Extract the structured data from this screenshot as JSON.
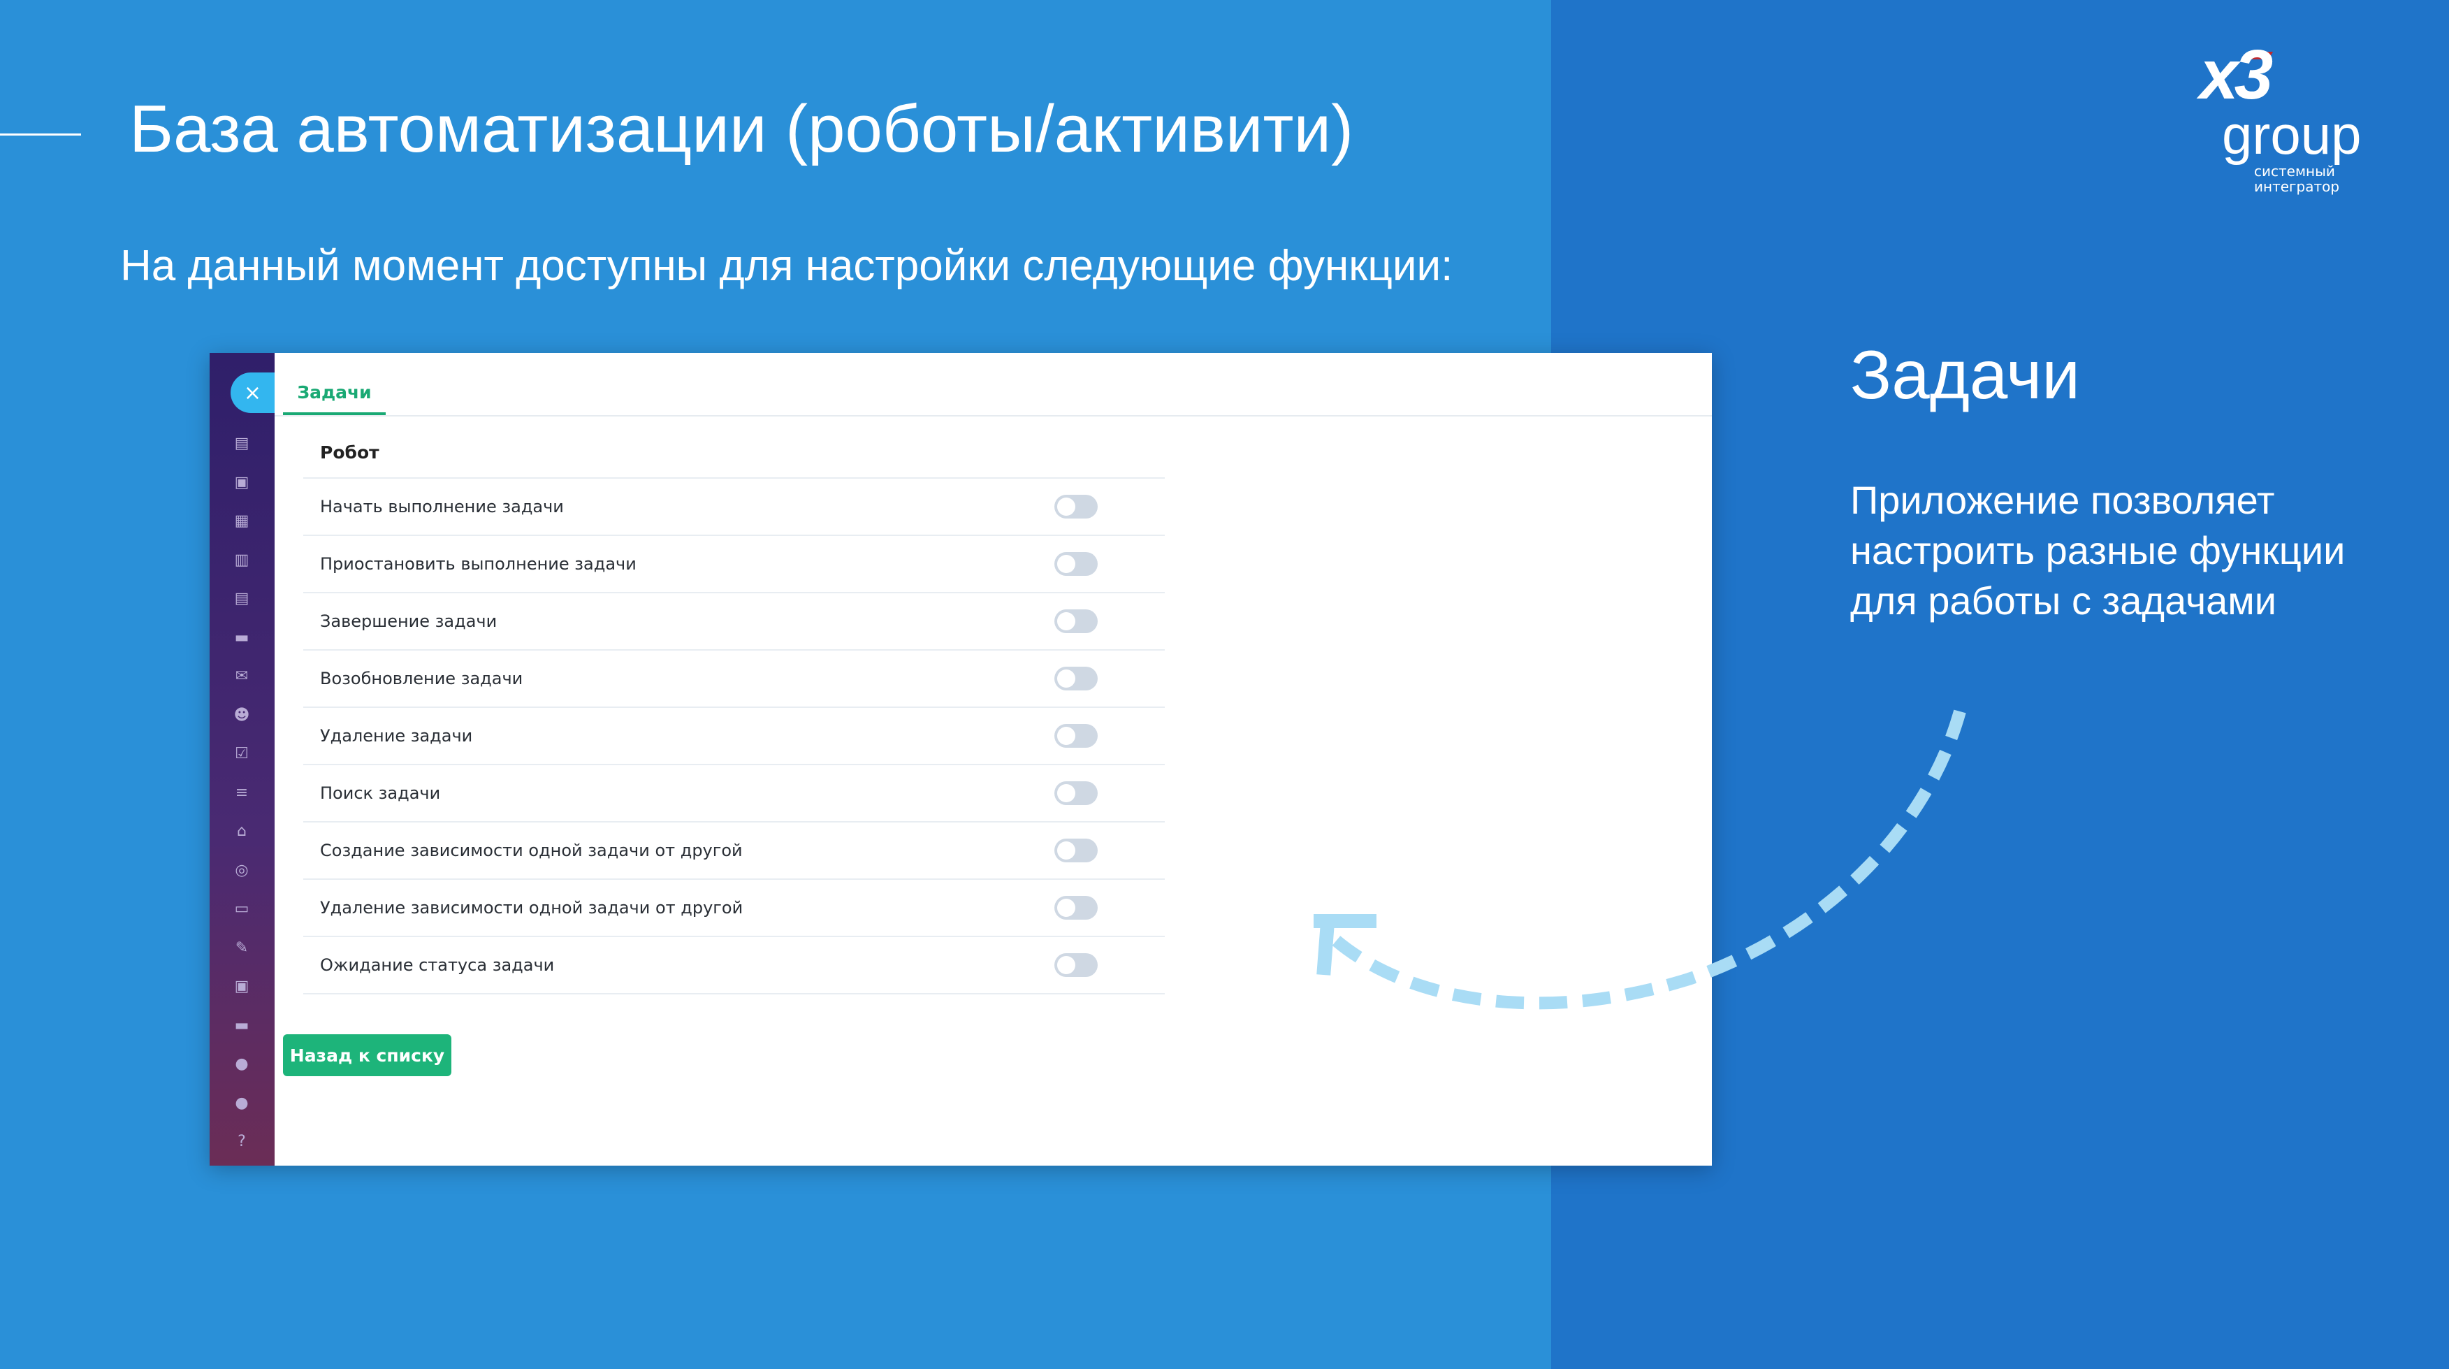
{
  "slide": {
    "title": "База автоматизации (роботы/активити)",
    "subtitle": "На данный момент доступны для настройки следующие функции:"
  },
  "logo": {
    "mark": "x3",
    "word": "group",
    "tagline_1": "системный",
    "tagline_2": "интегратор"
  },
  "app": {
    "close_icon": "×",
    "tab": "Задачи",
    "section": "Робот",
    "rows": [
      {
        "label": "Начать выполнение задачи",
        "enabled": false
      },
      {
        "label": "Приостановить выполнение задачи",
        "enabled": false
      },
      {
        "label": "Завершение задачи",
        "enabled": false
      },
      {
        "label": "Возобновление задачи",
        "enabled": false
      },
      {
        "label": "Удаление задачи",
        "enabled": false
      },
      {
        "label": "Поиск задачи",
        "enabled": false
      },
      {
        "label": "Создание зависимости одной задачи от другой",
        "enabled": false
      },
      {
        "label": "Удаление зависимости одной задачи от другой",
        "enabled": false
      },
      {
        "label": "Ожидание статуса задачи",
        "enabled": false
      }
    ],
    "back_button": "Назад к списку",
    "sidebar_icons": [
      "▤",
      "▣",
      "▦",
      "▥",
      "▤",
      "▬",
      "✉",
      "☻",
      "☑",
      "≡",
      "⌂",
      "◎",
      "▭",
      "✎",
      "▣",
      "▬",
      "●",
      "●",
      "?"
    ]
  },
  "right": {
    "title": "Задачи",
    "text": "Приложение позволяет настроить разные функции для работы с задачами"
  },
  "colors": {
    "accent_green": "#1db47a",
    "left_bg": "#2a90d8",
    "right_bg": "#1f74c9",
    "arrow": "#a9dcf5"
  }
}
